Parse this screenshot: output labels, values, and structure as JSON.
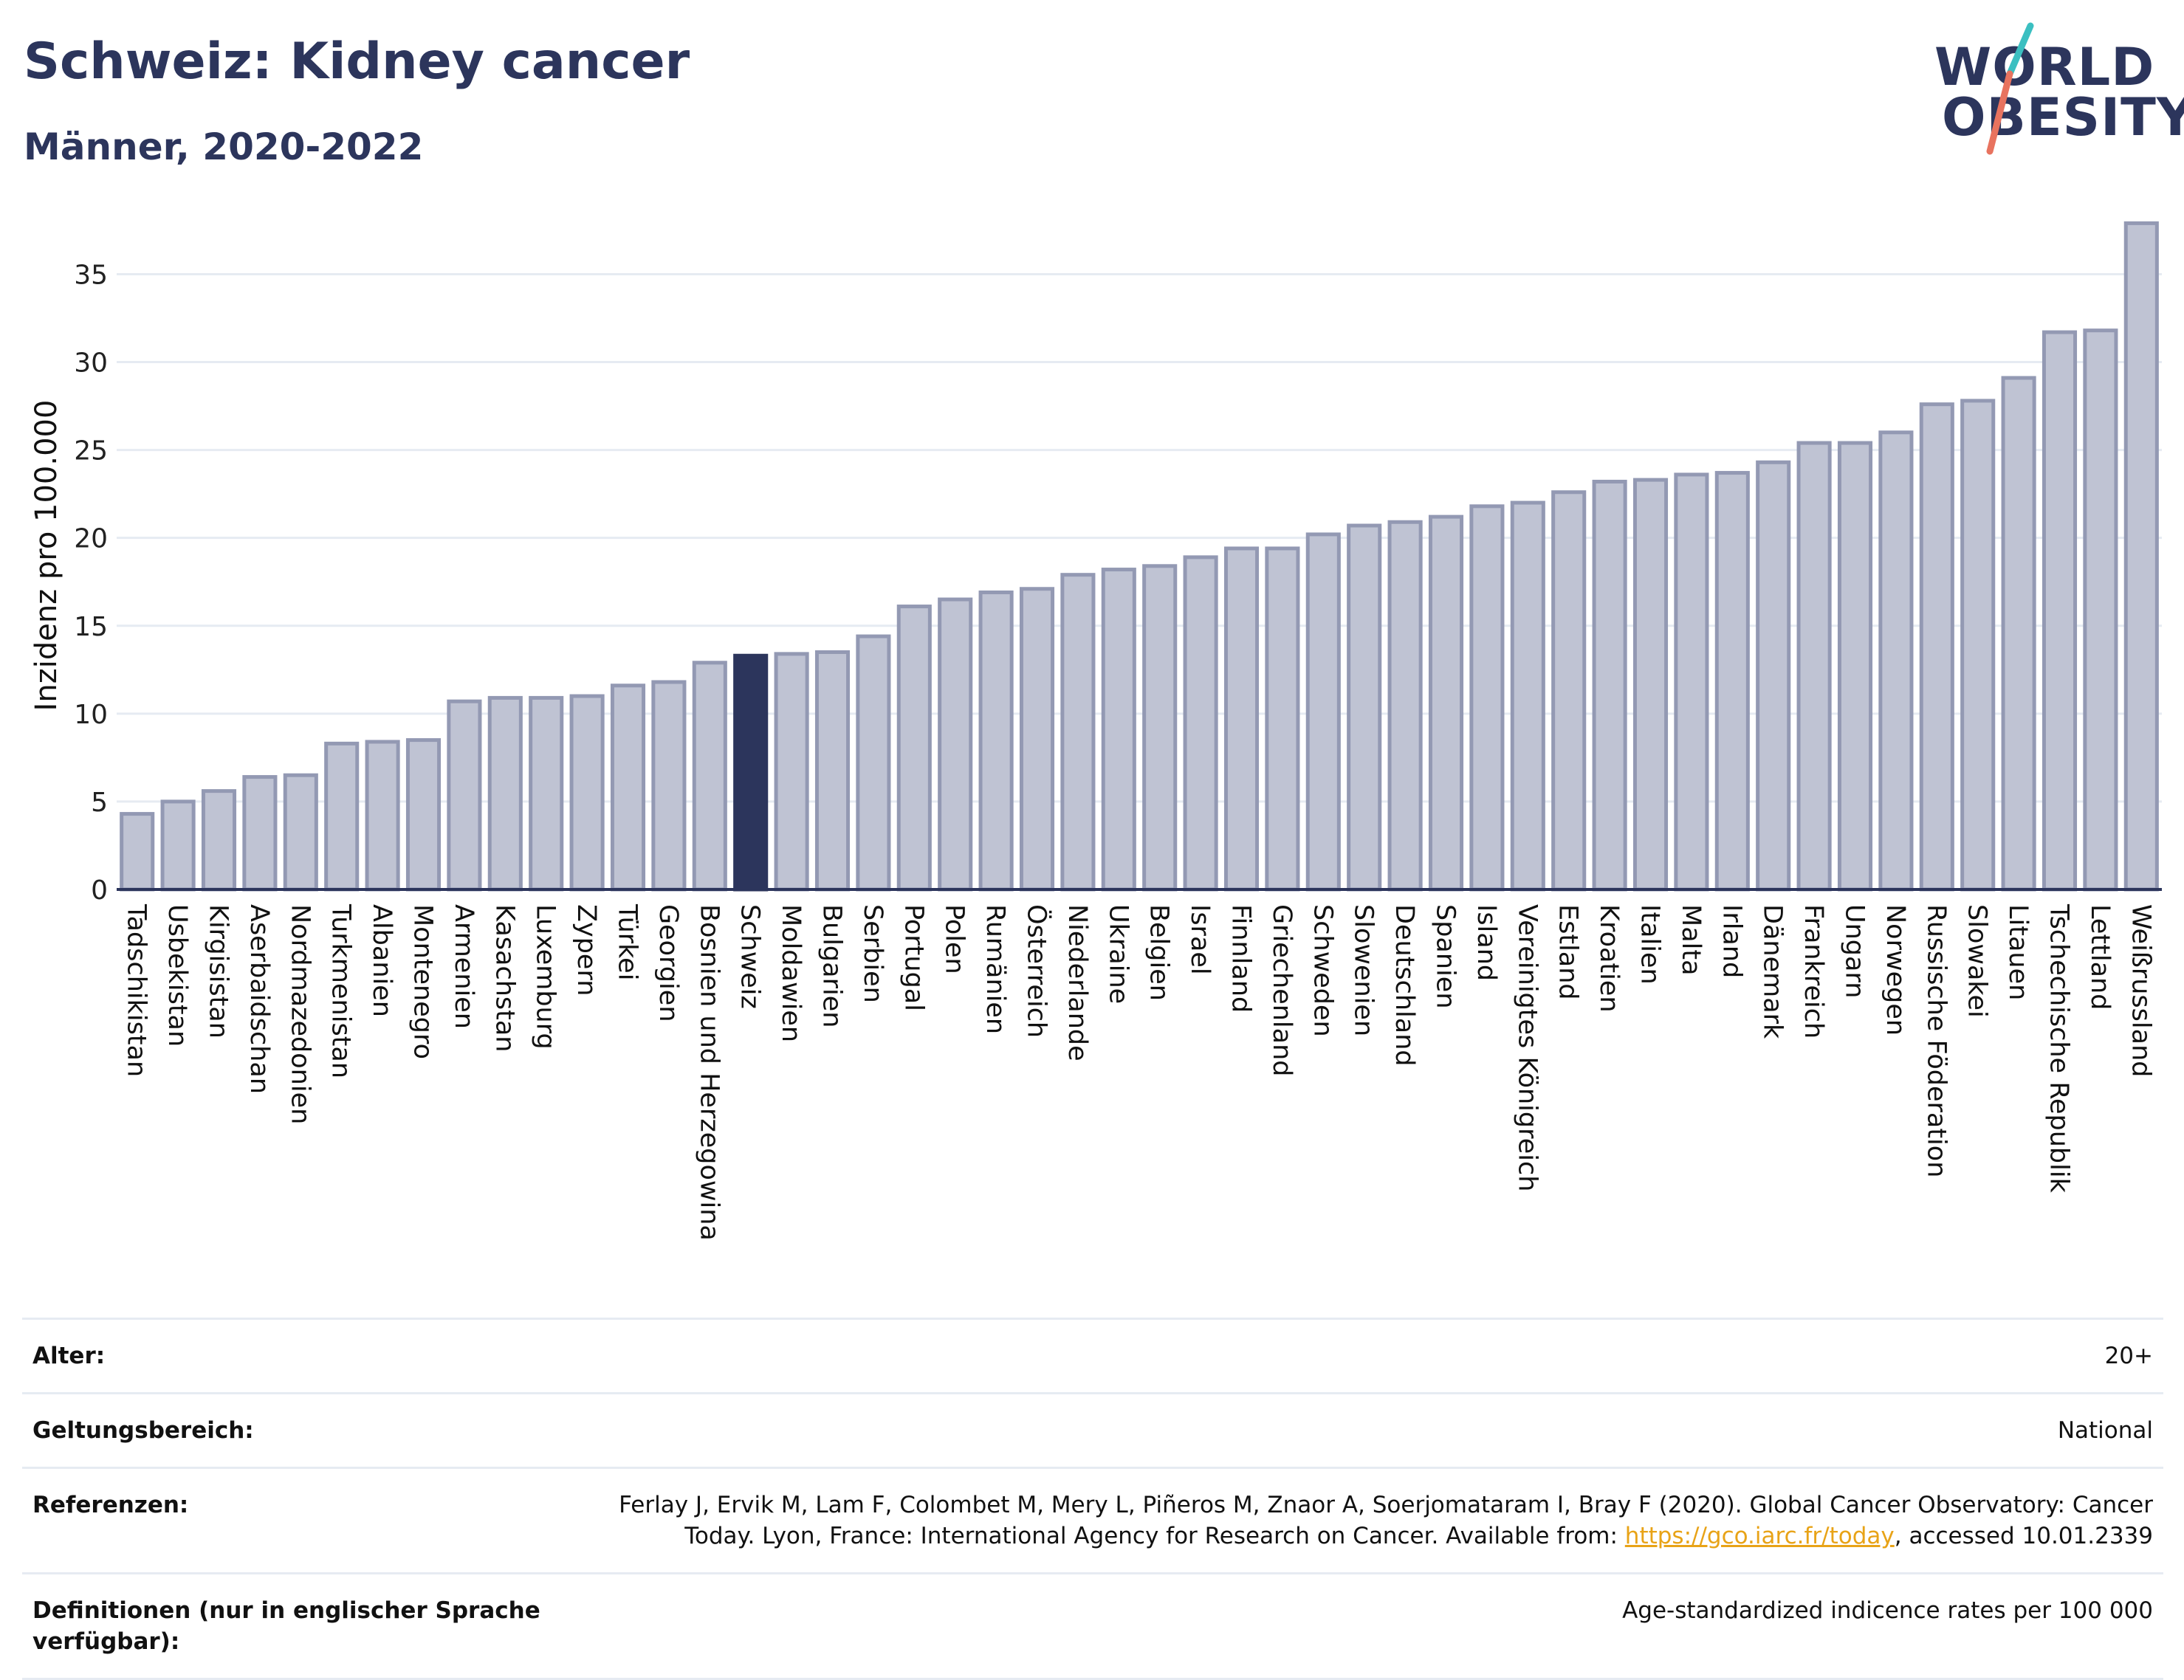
{
  "header": {
    "title": "Schweiz: Kidney cancer",
    "subtitle": "Männer, 2020-2022"
  },
  "logo": {
    "line1": "WORLD",
    "line2": "OBESITY"
  },
  "colors": {
    "bar": "#bfc3d3",
    "bar_border": "#9399b3",
    "highlight": "#2c355c",
    "grid": "#e6ebf2",
    "axis": "#2c355c"
  },
  "chart_data": {
    "type": "bar",
    "ylabel": "Inzidenz pro 100.000",
    "ylim": [
      0,
      38
    ],
    "yticks": [
      0,
      5,
      10,
      15,
      20,
      25,
      30,
      35
    ],
    "highlight": "Schweiz",
    "categories": [
      "Tadschikistan",
      "Usbekistan",
      "Kirgisistan",
      "Aserbaidschan",
      "Nordmazedonien",
      "Turkmenistan",
      "Albanien",
      "Montenegro",
      "Armenien",
      "Kasachstan",
      "Luxemburg",
      "Zypern",
      "Türkei",
      "Georgien",
      "Bosnien und Herzegowina",
      "Schweiz",
      "Moldawien",
      "Bulgarien",
      "Serbien",
      "Portugal",
      "Polen",
      "Rumänien",
      "Österreich",
      "Niederlande",
      "Ukraine",
      "Belgien",
      "Israel",
      "Finnland",
      "Griechenland",
      "Schweden",
      "Slowenien",
      "Deutschland",
      "Spanien",
      "Island",
      "Vereinigtes Königreich",
      "Estland",
      "Kroatien",
      "Italien",
      "Malta",
      "Irland",
      "Dänemark",
      "Frankreich",
      "Ungarn",
      "Norwegen",
      "Russische Föderation",
      "Slowakei",
      "Litauen",
      "Tschechische Republik",
      "Lettland",
      "Weißrussland"
    ],
    "values": [
      4.3,
      5.0,
      5.6,
      6.4,
      6.5,
      8.3,
      8.4,
      8.5,
      10.7,
      10.9,
      10.9,
      11.0,
      11.6,
      11.8,
      12.9,
      13.3,
      13.4,
      13.5,
      14.4,
      16.1,
      16.5,
      16.9,
      17.1,
      17.9,
      18.2,
      18.4,
      18.9,
      19.4,
      19.4,
      20.2,
      20.7,
      20.9,
      21.2,
      21.8,
      22.0,
      22.6,
      23.2,
      23.3,
      23.6,
      23.7,
      24.3,
      25.4,
      25.4,
      26.0,
      27.6,
      27.8,
      29.1,
      31.7,
      31.8,
      37.9
    ]
  },
  "info": {
    "rows": [
      {
        "label": "Alter:",
        "value": "20+"
      },
      {
        "label": "Geltungsbereich:",
        "value": "National"
      },
      {
        "label": "Referenzen:",
        "value_before": "Ferlay J, Ervik M, Lam F, Colombet M, Mery L, Piñeros M, Znaor A, Soerjomataram I, Bray F (2020). Global Cancer Observatory: Cancer Today. Lyon, France: International Agency for Research on Cancer. Available from: ",
        "link": "https://gco.iarc.fr/today",
        "value_after": ", accessed 10.01.2339"
      },
      {
        "label": "Definitionen (nur in englischer Sprache verfügbar):",
        "value": "Age-standardized indicence rates per 100 000"
      }
    ]
  }
}
